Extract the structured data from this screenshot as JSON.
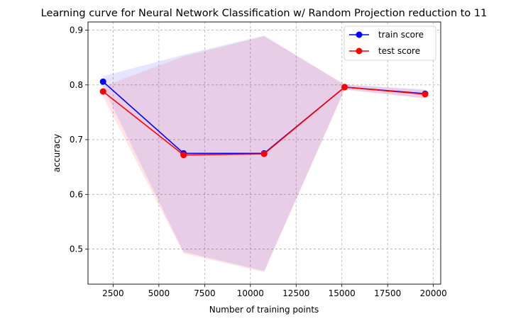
{
  "chart_data": {
    "type": "line",
    "title": "Learning curve for Neural Network Classification w/ Random Projection reduction to 11",
    "xlabel": "Number of training points",
    "ylabel": "accuracy",
    "xlim": [
      1127,
      20400
    ],
    "ylim": [
      0.436,
      0.915
    ],
    "xticks": [
      2500,
      5000,
      7500,
      10000,
      12500,
      15000,
      17500,
      20000
    ],
    "yticks": [
      0.5,
      0.6,
      0.7,
      0.8,
      0.9
    ],
    "grid": true,
    "legend_position": "top-right",
    "x": [
      1950,
      6350,
      10750,
      15150,
      19550
    ],
    "series": [
      {
        "name": "train score",
        "color": "#0000ff",
        "values": [
          0.806,
          0.675,
          0.675,
          0.796,
          0.784
        ],
        "band_upper": [
          0.816,
          0.855,
          0.89,
          0.8,
          0.792
        ],
        "band_lower": [
          0.796,
          0.495,
          0.46,
          0.792,
          0.776
        ]
      },
      {
        "name": "test score",
        "color": "#ff0000",
        "values": [
          0.788,
          0.672,
          0.674,
          0.796,
          0.783
        ],
        "band_upper": [
          0.797,
          0.852,
          0.889,
          0.801,
          0.79
        ],
        "band_lower": [
          0.779,
          0.492,
          0.458,
          0.791,
          0.775
        ]
      }
    ]
  }
}
